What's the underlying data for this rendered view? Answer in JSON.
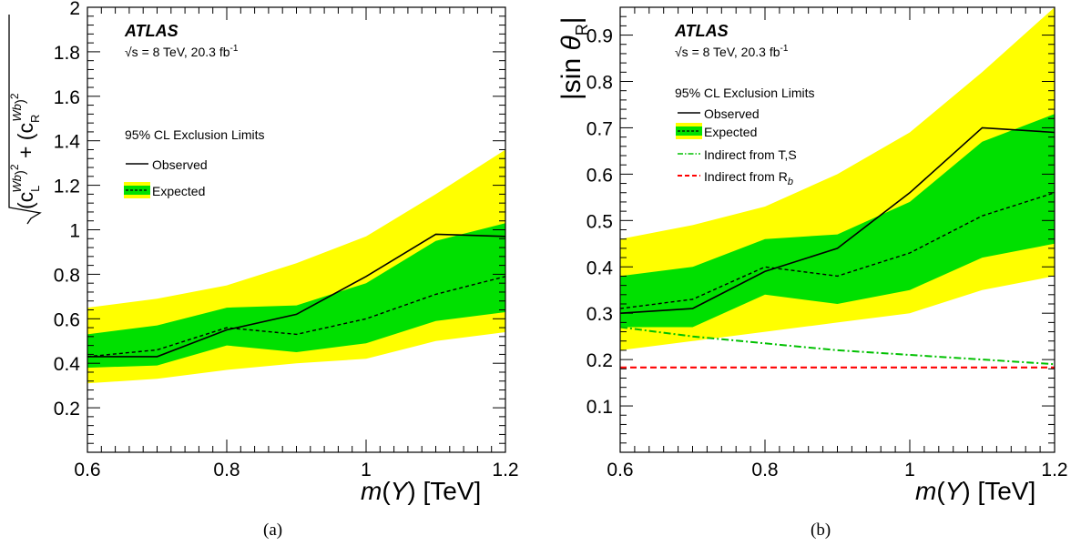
{
  "panels": [
    {
      "sublabel": "(a)",
      "atlas": "ATLAS",
      "energy": "√s = 8 TeV, 20.3 fb",
      "energy_sup": "-1",
      "legend": {
        "title": "95% CL Exclusion Limits",
        "observed": "Observed",
        "expected": "Expected"
      },
      "xlabel": "m(Y) [TeV]",
      "ylabel": "√((c_L^Wb)² + (c_R^Wb)²)",
      "chart_data": {
        "type": "line",
        "xlim": [
          0.6,
          1.2
        ],
        "ylim": [
          0,
          2.0
        ],
        "x_ticks": [
          "0.6",
          "0.8",
          "1",
          "1.2"
        ],
        "y_ticks": [
          "0.2",
          "0.4",
          "0.6",
          "0.8",
          "1",
          "1.2",
          "1.4",
          "1.6",
          "1.8",
          "2"
        ],
        "x": [
          0.6,
          0.7,
          0.8,
          0.9,
          1.0,
          1.1,
          1.2
        ],
        "observed": [
          0.43,
          0.43,
          0.55,
          0.62,
          0.79,
          0.98,
          0.97
        ],
        "expected": [
          0.43,
          0.46,
          0.56,
          0.53,
          0.6,
          0.71,
          0.79
        ],
        "band_1sigma": {
          "low": [
            0.38,
            0.39,
            0.48,
            0.45,
            0.49,
            0.59,
            0.63
          ],
          "high": [
            0.53,
            0.57,
            0.65,
            0.66,
            0.76,
            0.95,
            1.03
          ]
        },
        "band_2sigma": {
          "low": [
            0.31,
            0.33,
            0.37,
            0.4,
            0.42,
            0.5,
            0.54
          ],
          "high": [
            0.65,
            0.69,
            0.75,
            0.85,
            0.97,
            1.16,
            1.36
          ]
        },
        "grid": false,
        "legend_position": "top-left"
      }
    },
    {
      "sublabel": "(b)",
      "atlas": "ATLAS",
      "energy": "√s = 8 TeV, 20.3 fb",
      "energy_sup": "-1",
      "legend": {
        "title": "95% CL Exclusion Limits",
        "observed": "Observed",
        "expected": "Expected",
        "indirect_ts": "Indirect from T,S",
        "indirect_rb": "Indirect from R",
        "indirect_rb_sub": "b"
      },
      "xlabel": "m(Y) [TeV]",
      "ylabel": "|sin θR|",
      "chart_data": {
        "type": "line",
        "xlim": [
          0.6,
          1.2
        ],
        "ylim": [
          0,
          0.96
        ],
        "x_ticks": [
          "0.6",
          "0.8",
          "1",
          "1.2"
        ],
        "y_ticks": [
          "0.1",
          "0.2",
          "0.3",
          "0.4",
          "0.5",
          "0.6",
          "0.7",
          "0.8",
          "0.9"
        ],
        "x": [
          0.6,
          0.7,
          0.8,
          0.9,
          1.0,
          1.1,
          1.2
        ],
        "observed": [
          0.3,
          0.31,
          0.39,
          0.44,
          0.56,
          0.7,
          0.69
        ],
        "expected": [
          0.31,
          0.33,
          0.4,
          0.38,
          0.43,
          0.51,
          0.56
        ],
        "band_1sigma": {
          "low": [
            0.27,
            0.27,
            0.34,
            0.32,
            0.35,
            0.42,
            0.45
          ],
          "high": [
            0.38,
            0.4,
            0.46,
            0.47,
            0.54,
            0.67,
            0.73
          ]
        },
        "band_2sigma": {
          "low": [
            0.22,
            0.24,
            0.26,
            0.28,
            0.3,
            0.35,
            0.38
          ],
          "high": [
            0.46,
            0.49,
            0.53,
            0.6,
            0.69,
            0.82,
            0.96
          ]
        },
        "indirect_ts": [
          0.27,
          0.25,
          0.235,
          0.22,
          0.21,
          0.2,
          0.19
        ],
        "indirect_rb": [
          0.183,
          0.183,
          0.183,
          0.183,
          0.183,
          0.183,
          0.183
        ],
        "grid": false,
        "legend_position": "top-left"
      }
    }
  ],
  "colors": {
    "band_2sigma": "#ffff00",
    "band_1sigma": "#00e000",
    "observed": "#000000",
    "expected": "#000000",
    "indirect_ts": "#00c000",
    "indirect_rb": "#ff0000"
  }
}
